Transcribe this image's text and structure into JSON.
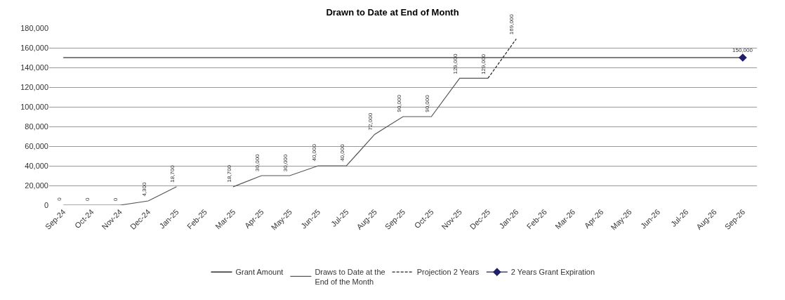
{
  "chart_data": {
    "type": "line",
    "title": "Drawn to Date at End of Month",
    "categories": [
      "Sep-24",
      "Oct-24",
      "Nov-24",
      "Dec-24",
      "Jan-25",
      "Feb-25",
      "Mar-25",
      "Apr-25",
      "May-25",
      "Jun-25",
      "Jul-25",
      "Aug-25",
      "Sep-25",
      "Oct-25",
      "Nov-25",
      "Dec-25",
      "Jan-26",
      "Feb-26",
      "Mar-26",
      "Apr-26",
      "May-26",
      "Jun-26",
      "Jul-26",
      "Aug-26",
      "Sep-26"
    ],
    "series": [
      {
        "name": "Grant Amount",
        "color": "#000000",
        "line_style": "solid",
        "marker": "none",
        "values": [
          150000,
          150000,
          150000,
          150000,
          150000,
          150000,
          150000,
          150000,
          150000,
          150000,
          150000,
          150000,
          150000,
          150000,
          150000,
          150000,
          150000,
          150000,
          150000,
          150000,
          150000,
          150000,
          150000,
          150000,
          150000
        ]
      },
      {
        "name": "Draws to Date at the\nEnd of the Month",
        "color": "#555555",
        "line_style": "solid",
        "marker": "none",
        "value_labels": [
          "0",
          "0",
          "0",
          "4,300",
          "18,700",
          null,
          "18,700",
          "30,000",
          "30,000",
          "40,000",
          "40,000",
          "72,000",
          "90,000",
          "90,000",
          "129,000",
          "129,000",
          null,
          null,
          null,
          null,
          null,
          null,
          null,
          null,
          null
        ],
        "values": [
          0,
          0,
          0,
          4300,
          18700,
          null,
          18700,
          30000,
          30000,
          40000,
          40000,
          72000,
          90000,
          90000,
          129000,
          129000,
          null,
          null,
          null,
          null,
          null,
          null,
          null,
          null,
          null
        ]
      },
      {
        "name": "Projection 2 Years",
        "color": "#222222",
        "line_style": "dashed",
        "marker": "none",
        "value_labels": [
          null,
          null,
          null,
          null,
          null,
          null,
          null,
          null,
          null,
          null,
          null,
          null,
          null,
          null,
          null,
          null,
          "169,000",
          null,
          null,
          null,
          null,
          null,
          null,
          null,
          null
        ],
        "values": [
          null,
          null,
          null,
          null,
          null,
          null,
          null,
          null,
          null,
          null,
          null,
          null,
          null,
          null,
          null,
          129000,
          169000,
          null,
          null,
          null,
          null,
          null,
          null,
          null,
          null
        ]
      },
      {
        "name": "2 Years Grant Expiration",
        "color": "#1f1f6b",
        "marker": "diamond",
        "value_labels": [
          null,
          null,
          null,
          null,
          null,
          null,
          null,
          null,
          null,
          null,
          null,
          null,
          null,
          null,
          null,
          null,
          null,
          null,
          null,
          null,
          null,
          null,
          null,
          null,
          "150,000"
        ],
        "values": [
          null,
          null,
          null,
          null,
          null,
          null,
          null,
          null,
          null,
          null,
          null,
          null,
          null,
          null,
          null,
          null,
          null,
          null,
          null,
          null,
          null,
          null,
          null,
          null,
          150000
        ]
      }
    ],
    "ylim": [
      0,
      180000
    ],
    "yticks": [
      {
        "value": 0,
        "label": "0"
      },
      {
        "value": 20000,
        "label": "20,000"
      },
      {
        "value": 40000,
        "label": "40,000"
      },
      {
        "value": 60000,
        "label": "60,000"
      },
      {
        "value": 80000,
        "label": "80,000"
      },
      {
        "value": 100000,
        "label": "100,000"
      },
      {
        "value": 120000,
        "label": "120,000"
      },
      {
        "value": 140000,
        "label": "140,000"
      },
      {
        "value": 160000,
        "label": "160,000"
      },
      {
        "value": 180000,
        "label": "180,000"
      }
    ],
    "grid": "y",
    "legend": "bottom"
  }
}
